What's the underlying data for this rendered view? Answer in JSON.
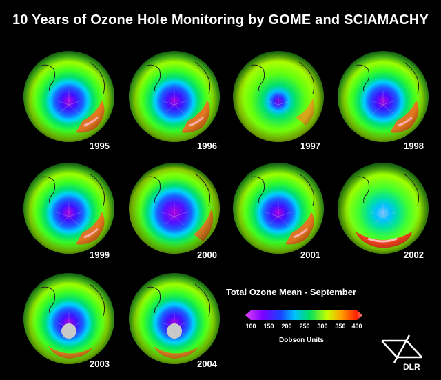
{
  "title": "10 Years of Ozone Hole Monitoring by GOME and SCIAMACHY",
  "globes": [
    {
      "year": "1995"
    },
    {
      "year": "1996"
    },
    {
      "year": "1997"
    },
    {
      "year": "1998"
    },
    {
      "year": "1999"
    },
    {
      "year": "2000"
    },
    {
      "year": "2001"
    },
    {
      "year": "2002"
    },
    {
      "year": "2003"
    },
    {
      "year": "2004"
    }
  ],
  "legend": {
    "title": "Total Ozone Mean - September",
    "ticks": [
      "100",
      "150",
      "200",
      "250",
      "300",
      "350",
      "400"
    ],
    "units": "Dobson Units"
  },
  "logo": {
    "text": "DLR"
  }
}
